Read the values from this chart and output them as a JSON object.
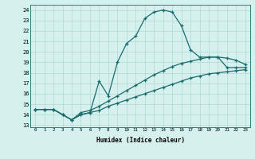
{
  "line1_x": [
    0,
    1,
    2,
    3,
    4,
    5,
    6,
    7,
    8,
    9,
    10,
    11,
    12,
    13,
    14,
    15,
    16,
    17,
    18,
    19,
    20,
    21,
    22,
    23
  ],
  "line1_y": [
    14.5,
    14.5,
    14.5,
    14.0,
    13.5,
    14.0,
    14.2,
    17.2,
    15.8,
    19.0,
    20.8,
    21.5,
    23.2,
    23.8,
    24.0,
    23.8,
    22.5,
    20.2,
    19.5,
    19.5,
    19.5,
    18.5,
    18.5,
    18.5
  ],
  "line2_x": [
    0,
    1,
    2,
    3,
    4,
    5,
    6,
    7,
    8,
    9,
    10,
    11,
    12,
    13,
    14,
    15,
    16,
    17,
    18,
    19,
    20,
    21,
    22,
    23
  ],
  "line2_y": [
    14.5,
    14.5,
    14.5,
    14.0,
    13.5,
    14.2,
    14.4,
    14.8,
    15.3,
    15.8,
    16.3,
    16.8,
    17.3,
    17.8,
    18.2,
    18.6,
    18.9,
    19.1,
    19.3,
    19.5,
    19.5,
    19.4,
    19.2,
    18.8
  ],
  "line3_x": [
    0,
    1,
    2,
    3,
    4,
    5,
    6,
    7,
    8,
    9,
    10,
    11,
    12,
    13,
    14,
    15,
    16,
    17,
    18,
    19,
    20,
    21,
    22,
    23
  ],
  "line3_y": [
    14.5,
    14.5,
    14.5,
    14.0,
    13.5,
    14.0,
    14.2,
    14.4,
    14.8,
    15.1,
    15.4,
    15.7,
    16.0,
    16.3,
    16.6,
    16.9,
    17.2,
    17.5,
    17.7,
    17.9,
    18.0,
    18.1,
    18.2,
    18.3
  ],
  "line_color": "#1a6b6b",
  "bg_color": "#d6f0ee",
  "grid_color": "#b0d8d8",
  "ylabel_vals": [
    13,
    14,
    15,
    16,
    17,
    18,
    19,
    20,
    21,
    22,
    23,
    24
  ],
  "xlabel_vals": [
    0,
    1,
    2,
    3,
    4,
    5,
    6,
    7,
    8,
    9,
    10,
    11,
    12,
    13,
    14,
    15,
    16,
    17,
    18,
    19,
    20,
    21,
    22,
    23
  ],
  "xlabel": "Humidex (Indice chaleur)",
  "ylim": [
    12.8,
    24.5
  ],
  "xlim": [
    -0.5,
    23.5
  ]
}
